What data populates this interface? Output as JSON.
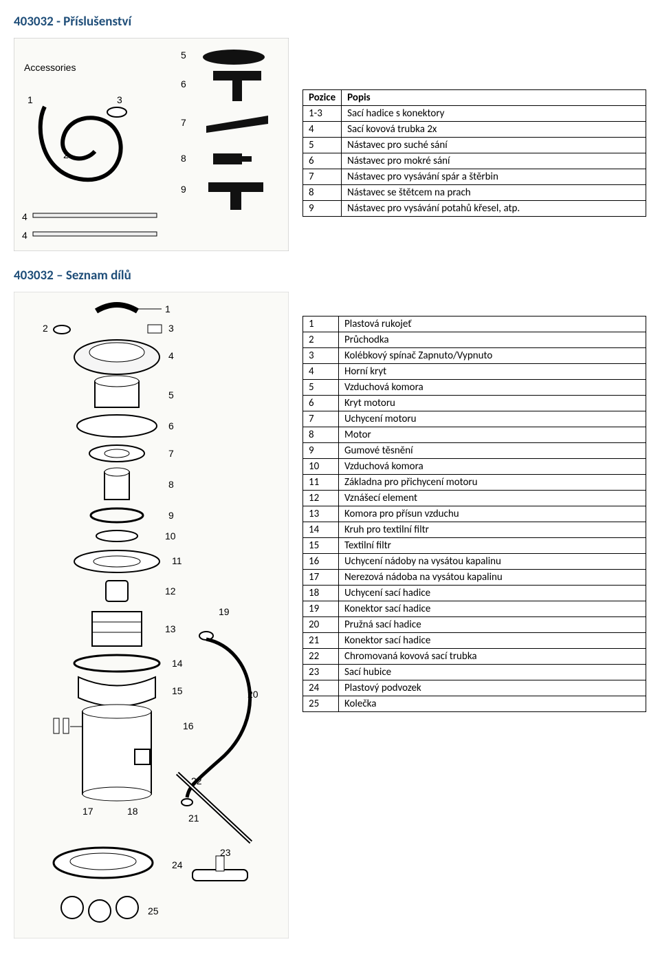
{
  "title1": "403032  - Příslušenství",
  "title2": "403032 – Seznam dílů",
  "accessories_label": "Accessories",
  "table1": {
    "headers": [
      "Pozice",
      "Popis"
    ],
    "rows": [
      [
        "1-3",
        "Sací hadice s konektory"
      ],
      [
        "4",
        "Sací kovová trubka 2x"
      ],
      [
        "5",
        "Nástavec pro suché sání"
      ],
      [
        "6",
        "Nástavec pro mokré sání"
      ],
      [
        "7",
        "Nástavec pro vysávání spár a štěrbin"
      ],
      [
        "8",
        "Nástavec se štětcem na prach"
      ],
      [
        "9",
        "Nástavec pro vysávání potahů křesel, atp."
      ]
    ]
  },
  "table2": {
    "rows": [
      [
        "1",
        "Plastová rukojeť"
      ],
      [
        "2",
        "Průchodka"
      ],
      [
        "3",
        "Kolébkový spínač Zapnuto/Vypnuto"
      ],
      [
        "4",
        "Horní kryt"
      ],
      [
        "5",
        "Vzduchová komora"
      ],
      [
        "6",
        "Kryt motoru"
      ],
      [
        "7",
        "Uchycení motoru"
      ],
      [
        "8",
        "Motor"
      ],
      [
        "9",
        "Gumové těsnění"
      ],
      [
        "10",
        "Vzduchová komora"
      ],
      [
        "11",
        "Základna pro přichycení motoru"
      ],
      [
        "12",
        "Vznášecí element"
      ],
      [
        "13",
        "Komora pro přísun vzduchu"
      ],
      [
        "14",
        "Kruh pro textilní filtr"
      ],
      [
        "15",
        "Textilní filtr"
      ],
      [
        "16",
        "Uchycení nádoby na vysátou kapalinu"
      ],
      [
        "17",
        "Nerezová nádoba na vysátou kapalinu"
      ],
      [
        "18",
        "Uchycení sací hadice"
      ],
      [
        "19",
        "Konektor sací hadice"
      ],
      [
        "20",
        "Pružná sací hadice"
      ],
      [
        "21",
        "Konektor sací hadice"
      ],
      [
        "22",
        "Chromovaná kovová sací trubka"
      ],
      [
        "23",
        "Sací hubice"
      ],
      [
        "24",
        "Plastový podvozek"
      ],
      [
        "25",
        "Kolečka"
      ]
    ]
  },
  "acc_diagram": {
    "labels": [
      "1",
      "2",
      "3",
      "4",
      "5",
      "6",
      "7",
      "8",
      "9"
    ]
  },
  "parts_diagram": {
    "labels": [
      "1",
      "2",
      "3",
      "4",
      "5",
      "6",
      "7",
      "8",
      "9",
      "10",
      "11",
      "12",
      "13",
      "14",
      "15",
      "16",
      "17",
      "18",
      "19",
      "20",
      "21",
      "22",
      "23",
      "24",
      "25"
    ]
  }
}
